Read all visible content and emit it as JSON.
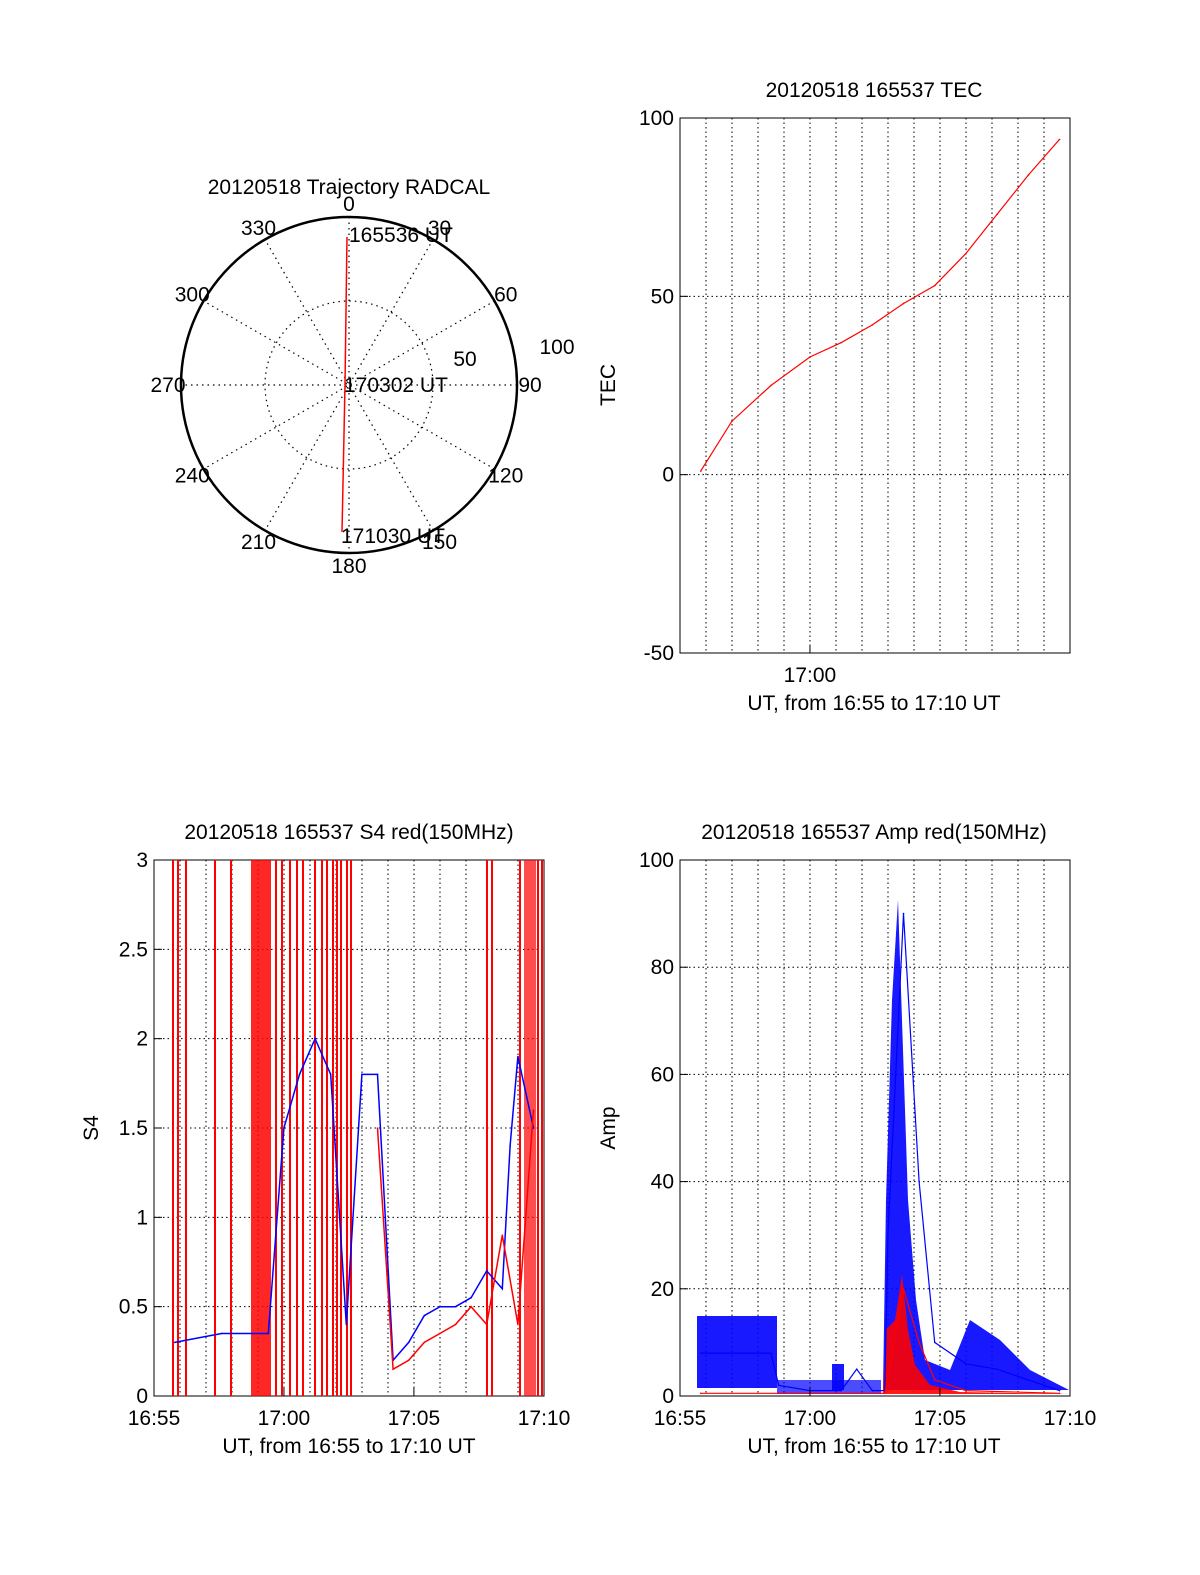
{
  "figure": {
    "colors": {
      "red": "#ff0000",
      "blue": "#0000ff",
      "axes": "#000000"
    }
  },
  "chart_data": [
    {
      "id": "trajectory",
      "type": "polar",
      "title": "20120518 Trajectory RADCAL",
      "angle_labels": [
        "0",
        "30",
        "60",
        "90",
        "120",
        "150",
        "180",
        "210",
        "240",
        "270",
        "300",
        "330"
      ],
      "radial_labels": [
        "50",
        "100"
      ],
      "rlim": [
        0,
        100
      ],
      "grid": true,
      "annotations": [
        "165536 UT",
        "170302 UT",
        "171030 UT"
      ],
      "series": [
        {
          "color": "#ff0000",
          "points": [
            {
              "az": 0,
              "zenith": 88
            },
            {
              "az": 0,
              "zenith": 0
            },
            {
              "az": 180,
              "zenith": 90
            }
          ]
        }
      ]
    },
    {
      "id": "tec",
      "type": "line",
      "title": "20120518 165537 TEC",
      "xlabel": "UT, from 16:55 to 17:10 UT",
      "ylabel": "TEC",
      "xlim": [
        16.9167,
        17.1667
      ],
      "ylim": [
        -50,
        100
      ],
      "x_ticks": [
        {
          "x": 17.0,
          "label": "17:00"
        }
      ],
      "y_ticks": [
        {
          "y": -50,
          "label": "-50"
        },
        {
          "y": 0,
          "label": "0"
        },
        {
          "y": 50,
          "label": "50"
        },
        {
          "y": 100,
          "label": "100"
        }
      ],
      "grid": true,
      "series": [
        {
          "color": "#ff0000",
          "x": [
            16.93,
            16.95,
            16.975,
            17.0,
            17.02,
            17.04,
            17.06,
            17.08,
            17.1,
            17.12,
            17.14,
            17.16
          ],
          "y": [
            1,
            15,
            25,
            33,
            37,
            42,
            48,
            53,
            62,
            73,
            84,
            94
          ]
        }
      ]
    },
    {
      "id": "s4",
      "type": "line",
      "title": "20120518 165537 S4 red(150MHz)",
      "xlabel": "UT, from 16:55 to 17:10 UT",
      "ylabel": "S4",
      "xlim": [
        16.9167,
        17.1667
      ],
      "ylim": [
        0,
        3
      ],
      "x_ticks": [
        {
          "x": 16.9167,
          "label": "16:55"
        },
        {
          "x": 17.0,
          "label": "17:00"
        },
        {
          "x": 17.0833,
          "label": "17:05"
        },
        {
          "x": 17.1667,
          "label": "17:10"
        }
      ],
      "y_ticks": [
        {
          "y": 0,
          "label": "0"
        },
        {
          "y": 0.5,
          "label": "0.5"
        },
        {
          "y": 1,
          "label": "1"
        },
        {
          "y": 1.5,
          "label": "1.5"
        },
        {
          "y": 2,
          "label": "2"
        },
        {
          "y": 2.5,
          "label": "2.5"
        },
        {
          "y": 3,
          "label": "3"
        }
      ],
      "grid": true,
      "series": [
        {
          "color": "#0000ff",
          "x": [
            16.93,
            16.96,
            16.98,
            16.99,
            17.0,
            17.01,
            17.02,
            17.03,
            17.04,
            17.05,
            17.06,
            17.07,
            17.08,
            17.09,
            17.1,
            17.11,
            17.12,
            17.13,
            17.14,
            17.145,
            17.15,
            17.16
          ],
          "y": [
            0.3,
            0.35,
            0.35,
            0.35,
            1.5,
            1.8,
            2.0,
            1.8,
            0.4,
            1.8,
            1.8,
            0.2,
            0.3,
            0.45,
            0.5,
            0.5,
            0.55,
            0.7,
            0.6,
            1.4,
            1.9,
            1.5
          ]
        },
        {
          "color": "#ff0000",
          "x": [
            17.06,
            17.07,
            17.08,
            17.09,
            17.1,
            17.11,
            17.12,
            17.13,
            17.14,
            17.15,
            17.16
          ],
          "y": [
            1.5,
            0.15,
            0.2,
            0.3,
            0.35,
            0.4,
            0.5,
            0.4,
            0.9,
            0.4,
            1.6
          ]
        }
      ]
    },
    {
      "id": "amp",
      "type": "line",
      "title": "20120518 165537 Amp red(150MHz)",
      "xlabel": "UT, from 16:55 to 17:10 UT",
      "ylabel": "Amp",
      "xlim": [
        16.9167,
        17.1667
      ],
      "ylim": [
        0,
        100
      ],
      "x_ticks": [
        {
          "x": 16.9167,
          "label": "16:55"
        },
        {
          "x": 17.0,
          "label": "17:00"
        },
        {
          "x": 17.0833,
          "label": "17:05"
        },
        {
          "x": 17.1667,
          "label": "17:10"
        }
      ],
      "y_ticks": [
        {
          "y": 0,
          "label": "0"
        },
        {
          "y": 20,
          "label": "20"
        },
        {
          "y": 40,
          "label": "40"
        },
        {
          "y": 60,
          "label": "60"
        },
        {
          "y": 80,
          "label": "80"
        },
        {
          "y": 100,
          "label": "100"
        }
      ],
      "grid": true,
      "series": [
        {
          "color": "#0000ff",
          "x": [
            16.93,
            16.95,
            16.975,
            16.98,
            17.0,
            17.02,
            17.03,
            17.04,
            17.048,
            17.05,
            17.055,
            17.06,
            17.07,
            17.08,
            17.1,
            17.12,
            17.14,
            17.16
          ],
          "y": [
            8,
            8,
            8,
            2,
            1,
            1,
            5,
            1,
            1,
            30,
            60,
            90,
            40,
            10,
            6,
            5,
            3,
            1
          ]
        },
        {
          "color": "#ff0000",
          "x": [
            16.93,
            17.048,
            17.055,
            17.06,
            17.07,
            17.08,
            17.1,
            17.16
          ],
          "y": [
            0.5,
            0.5,
            12,
            20,
            10,
            3,
            1,
            0.5
          ]
        }
      ]
    }
  ]
}
